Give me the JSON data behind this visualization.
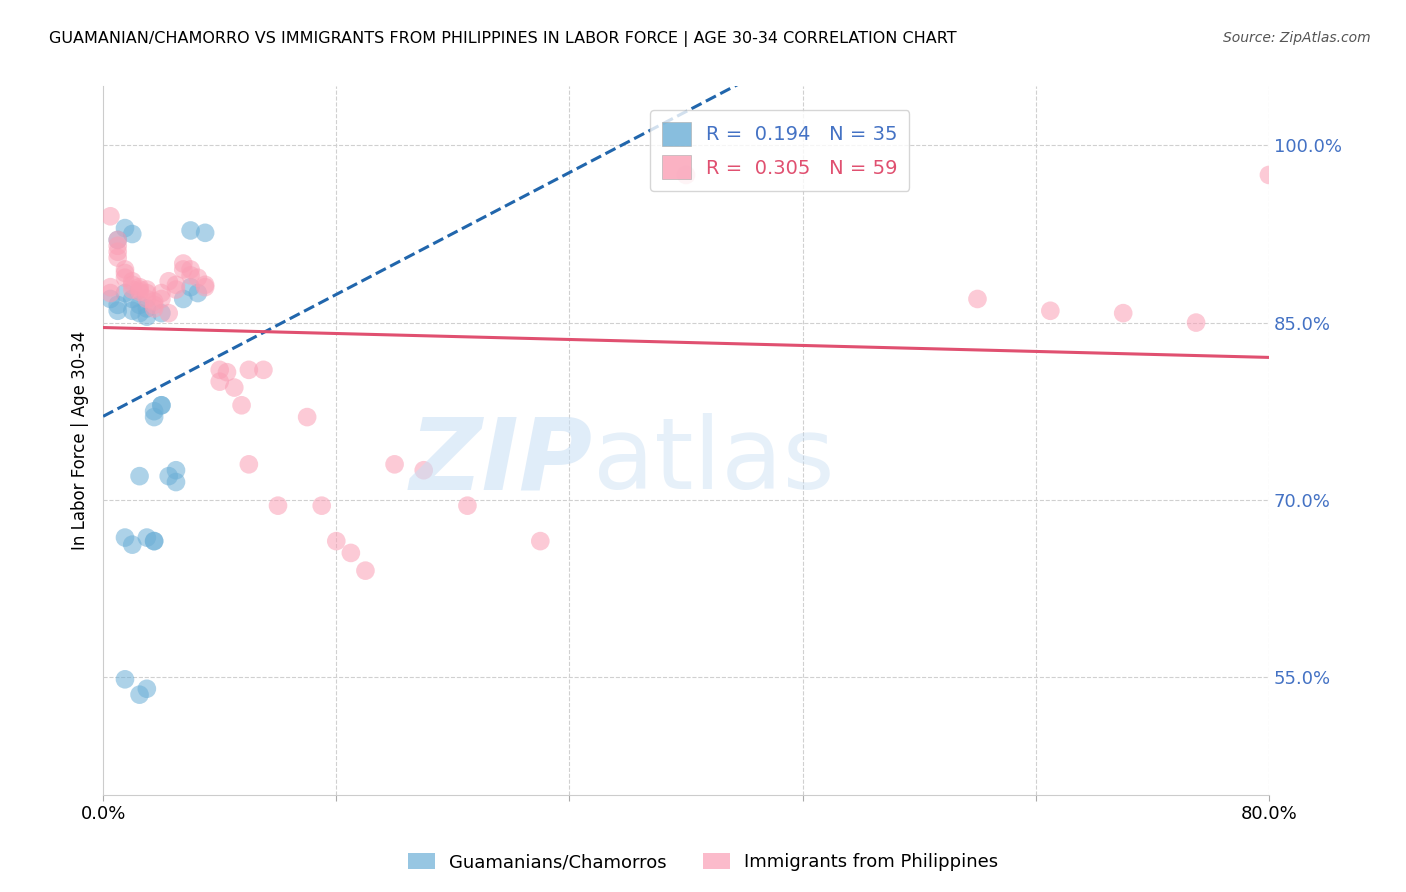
{
  "title": "GUAMANIAN/CHAMORRO VS IMMIGRANTS FROM PHILIPPINES IN LABOR FORCE | AGE 30-34 CORRELATION CHART",
  "source": "Source: ZipAtlas.com",
  "ylabel": "In Labor Force | Age 30-34",
  "legend_blue_r": "0.194",
  "legend_blue_n": "35",
  "legend_pink_r": "0.305",
  "legend_pink_n": "59",
  "legend_blue_label": "Guamanians/Chamorros",
  "legend_pink_label": "Immigrants from Philippines",
  "blue_color": "#6baed6",
  "pink_color": "#fa9fb5",
  "trendline_blue_color": "#2166ac",
  "trendline_pink_color": "#e05070",
  "background_color": "#ffffff",
  "grid_color": "#d0d0d0",
  "blue_points_x": [
    0.5,
    1.0,
    1.5,
    1.5,
    2.0,
    2.0,
    2.0,
    2.5,
    2.5,
    3.0,
    3.0,
    3.5,
    3.5,
    4.0,
    4.0,
    4.5,
    5.0,
    5.0,
    5.5,
    6.0,
    6.0,
    6.5,
    7.0,
    1.0,
    1.5,
    2.0,
    3.0,
    3.5,
    4.0,
    1.5,
    2.5,
    3.0,
    1.0,
    2.5,
    3.5
  ],
  "blue_points_y": [
    0.87,
    0.92,
    0.93,
    0.875,
    0.925,
    0.87,
    0.86,
    0.865,
    0.858,
    0.862,
    0.855,
    0.775,
    0.77,
    0.78,
    0.858,
    0.72,
    0.725,
    0.715,
    0.87,
    0.88,
    0.928,
    0.875,
    0.926,
    0.865,
    0.668,
    0.662,
    0.668,
    0.665,
    0.78,
    0.548,
    0.535,
    0.54,
    0.86,
    0.72,
    0.665
  ],
  "pink_points_x": [
    0.5,
    0.5,
    0.5,
    1.0,
    1.0,
    1.0,
    1.0,
    1.5,
    1.5,
    1.5,
    2.0,
    2.0,
    2.0,
    2.5,
    2.5,
    2.5,
    3.0,
    3.0,
    3.0,
    3.5,
    3.5,
    3.5,
    4.0,
    4.0,
    4.5,
    4.5,
    5.0,
    5.0,
    5.5,
    5.5,
    6.0,
    6.0,
    6.5,
    7.0,
    7.0,
    8.0,
    8.0,
    8.5,
    9.0,
    9.5,
    10.0,
    10.0,
    11.0,
    12.0,
    14.0,
    15.0,
    16.0,
    17.0,
    18.0,
    20.0,
    22.0,
    25.0,
    30.0,
    40.0,
    60.0,
    65.0,
    70.0,
    75.0,
    80.0
  ],
  "pink_points_y": [
    0.88,
    0.875,
    0.94,
    0.92,
    0.915,
    0.91,
    0.905,
    0.895,
    0.892,
    0.888,
    0.882,
    0.878,
    0.885,
    0.88,
    0.878,
    0.876,
    0.878,
    0.875,
    0.87,
    0.868,
    0.865,
    0.862,
    0.875,
    0.87,
    0.858,
    0.885,
    0.882,
    0.878,
    0.9,
    0.895,
    0.895,
    0.89,
    0.888,
    0.882,
    0.88,
    0.81,
    0.8,
    0.808,
    0.795,
    0.78,
    0.73,
    0.81,
    0.81,
    0.695,
    0.77,
    0.695,
    0.665,
    0.655,
    0.64,
    0.73,
    0.725,
    0.695,
    0.665,
    0.975,
    0.87,
    0.86,
    0.858,
    0.85,
    0.975
  ],
  "xlim": [
    0.0,
    80.0
  ],
  "ylim": [
    0.45,
    1.05
  ],
  "yticks": [
    0.55,
    0.7,
    0.85,
    1.0
  ],
  "ytick_labels": [
    "55.0%",
    "70.0%",
    "85.0%",
    "100.0%"
  ],
  "xticks": [
    0.0,
    16.0,
    32.0,
    48.0,
    64.0,
    80.0
  ],
  "xtick_labels_show": [
    "0.0%",
    "80.0%"
  ]
}
